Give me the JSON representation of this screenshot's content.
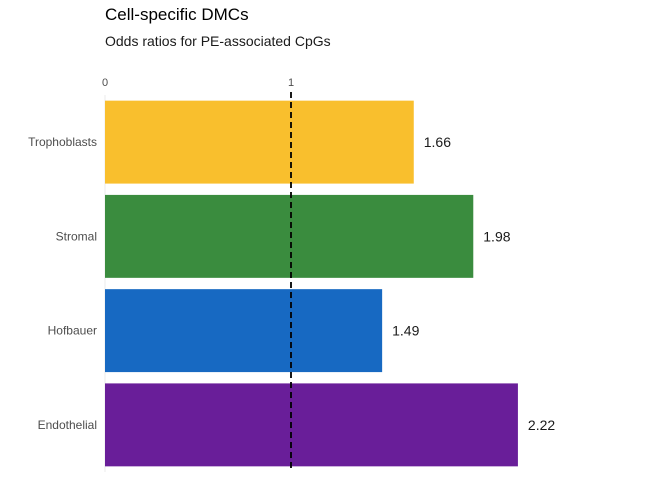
{
  "title": "Cell-specific DMCs",
  "subtitle": "Odds ratios for PE-associated CpGs",
  "chart_data": {
    "type": "bar",
    "orientation": "horizontal",
    "title": "Cell-specific DMCs",
    "subtitle": "Odds ratios for PE-associated CpGs",
    "categories": [
      "Trophoblasts",
      "Stromal",
      "Hofbauer",
      "Endothelial"
    ],
    "values": [
      1.66,
      1.98,
      1.49,
      2.22
    ],
    "value_labels": [
      "1.66",
      "1.98",
      "1.49",
      "2.22"
    ],
    "colors": [
      "#F9BF2D",
      "#3A8C3E",
      "#1769C2",
      "#691E99"
    ],
    "x_ticks": [
      "0",
      "1"
    ],
    "xlim": [
      0,
      2.22
    ],
    "reference_line": {
      "x": 1,
      "style": "dashed"
    },
    "grid": false,
    "legend": "none"
  }
}
